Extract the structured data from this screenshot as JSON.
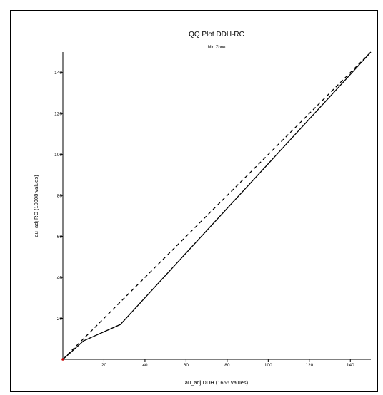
{
  "chart_data": {
    "type": "line",
    "title": "QQ Plot  DDH-RC",
    "subtitle": "Min Zone",
    "xlabel": "au_adj DDH (1656 values)",
    "ylabel": "au_adj RC (10908 values)",
    "xlim": [
      0,
      150
    ],
    "ylim": [
      0,
      150
    ],
    "x_ticks": [
      20,
      40,
      60,
      80,
      100,
      120,
      140
    ],
    "y_ticks": [
      20,
      40,
      60,
      80,
      100,
      120,
      140
    ],
    "grid": false,
    "series": [
      {
        "style": "solid",
        "color": "#000000",
        "x": [
          0,
          4,
          10,
          28,
          150
        ],
        "y": [
          0,
          3.5,
          9,
          17,
          150
        ]
      },
      {
        "style": "dashed",
        "color": "#000000",
        "x": [
          0,
          150
        ],
        "y": [
          0,
          150
        ]
      }
    ],
    "origin_marker_color": "#cc0000"
  }
}
